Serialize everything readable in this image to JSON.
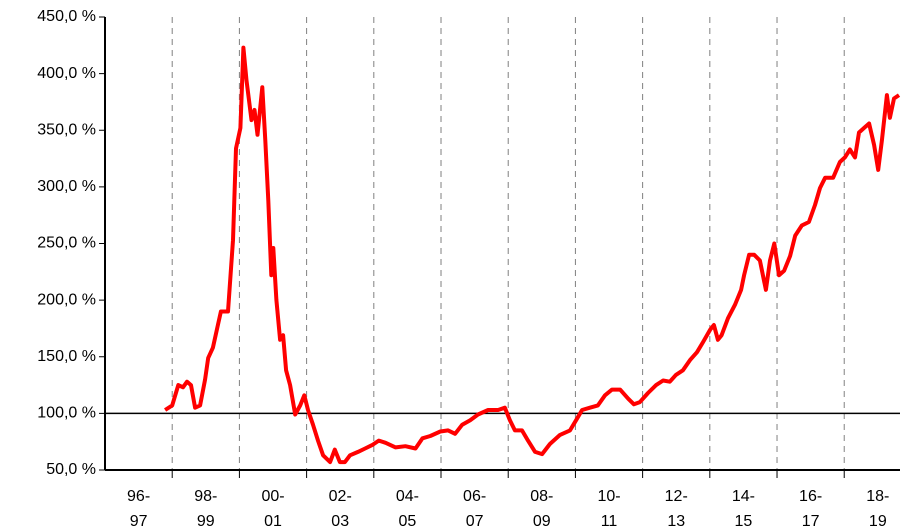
{
  "chart_data": {
    "type": "line",
    "series": [
      {
        "color": "#ff0000",
        "x": [
          1997.79,
          1998.0,
          1998.18,
          1998.32,
          1998.44,
          1998.56,
          1998.68,
          1998.83,
          1998.98,
          1999.07,
          1999.21,
          1999.36,
          1999.45,
          1999.66,
          1999.81,
          1999.9,
          2000.03,
          2000.12,
          2000.21,
          2000.36,
          2000.45,
          2000.54,
          2000.68,
          2000.77,
          2000.86,
          2000.95,
          2001.01,
          2001.1,
          2001.21,
          2001.3,
          2001.39,
          2001.51,
          2001.66,
          2001.81,
          2001.93,
          2002.04,
          2002.19,
          2002.34,
          2002.49,
          2002.7,
          2002.84,
          2002.99,
          2003.14,
          2003.29,
          2003.53,
          2003.74,
          2003.95,
          2004.15,
          2004.35,
          2004.65,
          2004.94,
          2005.24,
          2005.45,
          2005.68,
          2005.98,
          2006.21,
          2006.42,
          2006.63,
          2006.87,
          2007.1,
          2007.4,
          2007.7,
          2007.9,
          2008.05,
          2008.2,
          2008.41,
          2008.59,
          2008.8,
          2009.01,
          2009.24,
          2009.54,
          2009.84,
          2010.02,
          2010.2,
          2010.43,
          2010.67,
          2010.88,
          2011.09,
          2011.33,
          2011.57,
          2011.74,
          2011.92,
          2012.16,
          2012.4,
          2012.61,
          2012.81,
          2012.99,
          2013.2,
          2013.41,
          2013.62,
          2013.8,
          2014.01,
          2014.12,
          2014.24,
          2014.35,
          2014.54,
          2014.75,
          2014.93,
          2015.02,
          2015.17,
          2015.32,
          2015.49,
          2015.67,
          2015.79,
          2015.92,
          2016.06,
          2016.21,
          2016.39,
          2016.54,
          2016.74,
          2016.95,
          2017.13,
          2017.28,
          2017.43,
          2017.67,
          2017.87,
          2018.02,
          2018.17,
          2018.32,
          2018.44,
          2018.59,
          2018.74,
          2018.89,
          2019.01,
          2019.12,
          2019.27,
          2019.36,
          2019.48,
          2019.63
        ],
        "values": [
          103,
          107,
          125,
          123,
          128,
          125,
          105,
          107,
          130,
          149,
          158,
          178,
          190,
          190,
          253,
          334,
          352,
          423,
          394,
          359,
          368,
          346,
          388,
          341,
          288,
          222,
          246,
          200,
          165,
          169,
          138,
          125,
          99,
          107,
          116,
          103,
          90,
          76,
          63,
          57,
          68,
          57,
          57,
          63,
          66,
          69,
          72,
          76,
          74,
          70,
          71,
          69,
          78,
          80,
          84,
          85,
          82,
          90,
          94,
          99,
          103,
          103,
          105,
          94,
          85,
          85,
          76,
          66,
          64,
          73,
          81,
          85,
          94,
          103,
          105,
          107,
          116,
          121,
          121,
          113,
          108,
          110,
          118,
          125,
          129,
          128,
          134,
          138,
          147,
          154,
          163,
          174,
          178,
          165,
          169,
          184,
          196,
          209,
          222,
          240,
          240,
          235,
          209,
          235,
          250,
          222,
          226,
          239,
          257,
          266,
          269,
          284,
          299,
          308,
          308,
          322,
          326,
          333,
          326,
          348,
          352,
          356,
          337,
          315,
          341,
          381,
          361,
          378,
          381
        ]
      }
    ],
    "xlim": [
      1996,
      2019.66
    ],
    "xticks": [
      1998,
      2000,
      2002,
      2004,
      2006,
      2008,
      2010,
      2012,
      2014,
      2016,
      2018
    ],
    "x_period_labels": [
      [
        "96-",
        "97"
      ],
      [
        "98-",
        "99"
      ],
      [
        "00-",
        "01"
      ],
      [
        "02-",
        "03"
      ],
      [
        "04-",
        "05"
      ],
      [
        "06-",
        "07"
      ],
      [
        "08-",
        "09"
      ],
      [
        "10-",
        "11"
      ],
      [
        "12-",
        "13"
      ],
      [
        "14-",
        "15"
      ],
      [
        "16-",
        "17"
      ],
      [
        "18-",
        "19"
      ]
    ],
    "ylim": [
      50,
      450
    ],
    "yticks": [
      {
        "value": 50,
        "label": "50,0 %"
      },
      {
        "value": 100,
        "label": "100,0 %"
      },
      {
        "value": 150,
        "label": "150,0 %"
      },
      {
        "value": 200,
        "label": "200,0 %"
      },
      {
        "value": 250,
        "label": "250,0 %"
      },
      {
        "value": 300,
        "label": "300,0 %"
      },
      {
        "value": 350,
        "label": "350,0 %"
      },
      {
        "value": 400,
        "label": "400,0 %"
      },
      {
        "value": 450,
        "label": "450,0 %"
      }
    ],
    "reference_line": 100,
    "grid": "x"
  }
}
